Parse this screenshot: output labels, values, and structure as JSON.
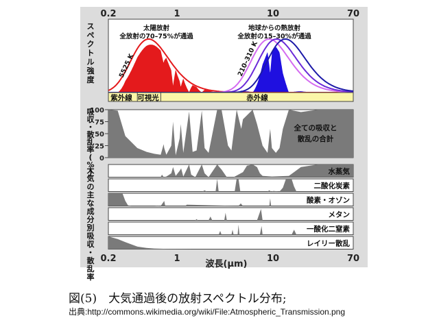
{
  "chart_data": {
    "type": "area",
    "x_scale": "log",
    "x_range": [
      0.2,
      70
    ],
    "x_ticks": [
      "0.2",
      "1",
      "10",
      "70"
    ],
    "x_axis_label": "波長(μm)",
    "top_panel": {
      "ylabel": "スペクトル強度",
      "sun_title_1": "太陽放射",
      "sun_title_2": "全放射の70–75%が通過",
      "earth_title_1": "地球からの熱放射",
      "earth_title_2": "全放射の15–30%が通過",
      "sun_curve_label": "5525 K",
      "earth_curve_label": "210–310 K",
      "sun_color": "#e41a1c",
      "earth_color": "#1f10e0",
      "bands": [
        {
          "label": "紫外線",
          "from": 0.2,
          "to": 0.4
        },
        {
          "label": "可視光",
          "from": 0.4,
          "to": 0.7
        },
        {
          "label": "赤外線",
          "from": 0.7,
          "to": 70
        }
      ],
      "band_color": "#fbf6a8"
    },
    "total_panel": {
      "ylabel": "吸収・散乱率(%)",
      "yticks": [
        "100",
        "75",
        "50",
        "25",
        "0"
      ],
      "label_1": "全ての吸収と",
      "label_2": "散乱の合計",
      "x": [
        0.2,
        0.25,
        0.3,
        0.4,
        0.5,
        0.6,
        0.7,
        0.75,
        0.76,
        0.8,
        0.9,
        0.94,
        1.0,
        1.1,
        1.13,
        1.2,
        1.38,
        1.5,
        1.65,
        1.87,
        2.0,
        2.2,
        2.7,
        3.0,
        3.5,
        3.8,
        4.3,
        4.8,
        5.0,
        6.3,
        7.0,
        8.0,
        9.0,
        9.6,
        10.0,
        11.0,
        12.0,
        13.0,
        15.0,
        20.0,
        30.0,
        50.0,
        70.0
      ],
      "y": [
        100,
        98,
        45,
        20,
        12,
        8,
        6,
        28,
        20,
        6,
        25,
        75,
        5,
        40,
        70,
        10,
        96,
        12,
        15,
        98,
        20,
        10,
        100,
        100,
        25,
        15,
        100,
        60,
        80,
        100,
        70,
        25,
        10,
        60,
        20,
        10,
        20,
        60,
        100,
        95,
        100,
        100,
        100
      ]
    },
    "gas_panel": {
      "ylabel": "大気の主な成分別吸収・散乱率",
      "series": [
        {
          "name": "水蒸気",
          "x": [
            0.2,
            0.7,
            0.72,
            0.75,
            0.8,
            0.9,
            0.94,
            1.0,
            1.1,
            1.14,
            1.2,
            1.38,
            1.45,
            1.6,
            1.87,
            2.0,
            2.2,
            2.7,
            3.0,
            3.4,
            4.0,
            5.0,
            5.5,
            6.3,
            7.0,
            7.5,
            8.0,
            10.0,
            15.0,
            17.0,
            20.0,
            30.0,
            70.0
          ],
          "y": [
            0,
            0,
            20,
            0,
            5,
            30,
            80,
            10,
            50,
            70,
            5,
            100,
            20,
            0,
            100,
            30,
            0,
            100,
            60,
            0,
            0,
            40,
            90,
            100,
            80,
            30,
            10,
            5,
            10,
            40,
            80,
            100,
            100
          ]
        },
        {
          "name": "二酸化炭素",
          "x": [
            0.2,
            1.9,
            2.0,
            2.1,
            2.6,
            2.7,
            2.8,
            4.1,
            4.3,
            4.5,
            4.7,
            5.0,
            9.0,
            9.4,
            9.8,
            10.4,
            12.0,
            13.0,
            14.0,
            15.0,
            16.0,
            17.0,
            18.0,
            70.0
          ],
          "y": [
            0,
            0,
            10,
            0,
            0,
            100,
            0,
            0,
            100,
            100,
            0,
            0,
            0,
            10,
            0,
            5,
            0,
            30,
            100,
            100,
            100,
            40,
            0,
            0
          ]
        },
        {
          "name": "酸素・オゾン",
          "x": [
            0.2,
            0.25,
            0.28,
            0.3,
            0.32,
            0.35,
            0.6,
            0.65,
            0.7,
            0.76,
            0.78,
            1.27,
            1.3,
            4.5,
            4.75,
            5.0,
            9.4,
            9.6,
            9.8,
            14.0,
            70.0
          ],
          "y": [
            100,
            100,
            100,
            40,
            5,
            0,
            0,
            3,
            0,
            40,
            0,
            0,
            10,
            0,
            20,
            0,
            0,
            60,
            0,
            0,
            0
          ]
        },
        {
          "name": "メタン",
          "x": [
            0.2,
            1.6,
            1.65,
            1.7,
            2.2,
            2.3,
            2.4,
            3.2,
            3.3,
            3.4,
            7.0,
            7.7,
            8.0,
            70.0
          ],
          "y": [
            0,
            0,
            10,
            0,
            0,
            30,
            0,
            0,
            60,
            0,
            0,
            90,
            0,
            0
          ]
        },
        {
          "name": "一酸化二窒素",
          "x": [
            0.2,
            2.8,
            2.9,
            3.0,
            3.8,
            3.9,
            4.0,
            4.4,
            4.5,
            4.6,
            7.5,
            7.8,
            8.0,
            8.5,
            16.0,
            17.0,
            18.0,
            70.0
          ],
          "y": [
            0,
            0,
            30,
            0,
            0,
            40,
            0,
            0,
            80,
            0,
            0,
            70,
            0,
            0,
            0,
            40,
            0,
            0
          ]
        },
        {
          "name": "レイリー散乱",
          "x": [
            0.2,
            0.25,
            0.3,
            0.4,
            0.5,
            0.6,
            0.8,
            1.0,
            1.5,
            2.0,
            70.0
          ],
          "y": [
            100,
            80,
            55,
            20,
            9,
            5,
            2,
            1,
            0,
            0,
            0
          ]
        }
      ]
    }
  },
  "caption": "図(5)　大気通過後の放射スペクトル分布;",
  "source": "出典:http://commons.wikimedia.org/wiki/File:Atmospheric_Transmission.png"
}
